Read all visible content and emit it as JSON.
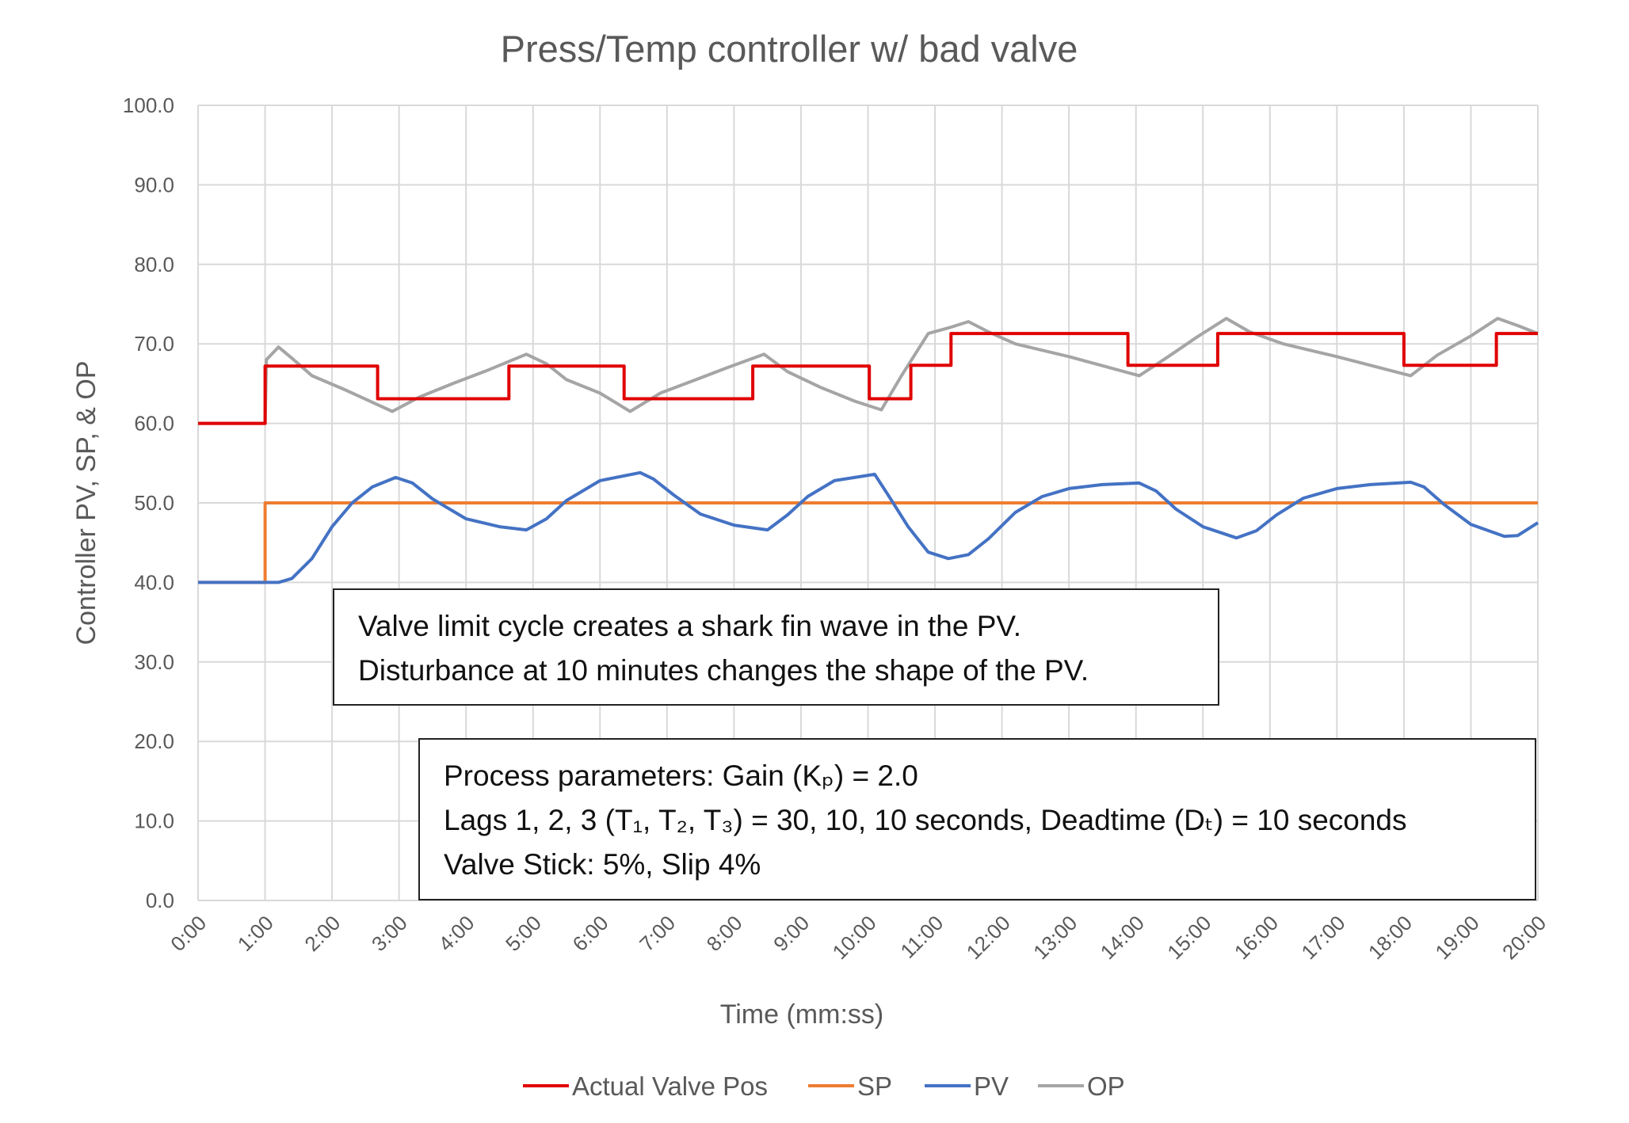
{
  "chart_data": {
    "type": "line",
    "title": "Press/Temp controller w/ bad valve",
    "xlabel": "Time (mm:ss)",
    "ylabel": "Controller PV, SP, & OP",
    "xlim": [
      0,
      20
    ],
    "ylim": [
      0,
      100
    ],
    "grid": true,
    "legend_position": "bottom",
    "x_unit": "minutes",
    "x_tick_labels": [
      "0:00",
      "1:00",
      "2:00",
      "3:00",
      "4:00",
      "5:00",
      "6:00",
      "7:00",
      "8:00",
      "9:00",
      "10:00",
      "11:00",
      "12:00",
      "13:00",
      "14:00",
      "15:00",
      "16:00",
      "17:00",
      "18:00",
      "19:00",
      "20:00"
    ],
    "y_tick_labels": [
      "0.0",
      "10.0",
      "20.0",
      "30.0",
      "40.0",
      "50.0",
      "60.0",
      "70.0",
      "80.0",
      "90.0",
      "100.0"
    ],
    "series": [
      {
        "name": "Actual Valve Pos",
        "color": "#e00000",
        "step": true,
        "points": [
          [
            0,
            60
          ],
          [
            1,
            60
          ],
          [
            1,
            67.2
          ],
          [
            2.68,
            67.2
          ],
          [
            2.68,
            63.1
          ],
          [
            4.64,
            63.1
          ],
          [
            4.64,
            67.2
          ],
          [
            6.36,
            67.2
          ],
          [
            6.36,
            63.1
          ],
          [
            8.28,
            63.1
          ],
          [
            8.28,
            67.2
          ],
          [
            10.02,
            67.2
          ],
          [
            10.02,
            63.1
          ],
          [
            10.64,
            63.1
          ],
          [
            10.64,
            67.3
          ],
          [
            11.24,
            67.3
          ],
          [
            11.24,
            71.3
          ],
          [
            13.88,
            71.3
          ],
          [
            13.88,
            67.3
          ],
          [
            15.22,
            67.3
          ],
          [
            15.22,
            71.3
          ],
          [
            18.0,
            71.3
          ],
          [
            18.0,
            67.3
          ],
          [
            19.38,
            67.3
          ],
          [
            19.38,
            71.3
          ],
          [
            20,
            71.3
          ]
        ]
      },
      {
        "name": "SP",
        "color": "#ed7d31",
        "points": [
          [
            0,
            40
          ],
          [
            1,
            40
          ],
          [
            1,
            50
          ],
          [
            20,
            50
          ]
        ]
      },
      {
        "name": "PV",
        "color": "#4472c4",
        "points": [
          [
            0,
            40
          ],
          [
            1.2,
            40
          ],
          [
            1.4,
            40.5
          ],
          [
            1.7,
            43
          ],
          [
            2.0,
            47
          ],
          [
            2.3,
            50
          ],
          [
            2.6,
            52
          ],
          [
            2.95,
            53.2
          ],
          [
            3.2,
            52.5
          ],
          [
            3.5,
            50.5
          ],
          [
            4.0,
            48
          ],
          [
            4.5,
            47
          ],
          [
            4.9,
            46.6
          ],
          [
            5.2,
            48
          ],
          [
            5.5,
            50.3
          ],
          [
            6.0,
            52.8
          ],
          [
            6.6,
            53.8
          ],
          [
            6.8,
            53
          ],
          [
            7.1,
            51
          ],
          [
            7.5,
            48.6
          ],
          [
            8.0,
            47.2
          ],
          [
            8.5,
            46.6
          ],
          [
            8.8,
            48.5
          ],
          [
            9.1,
            50.8
          ],
          [
            9.5,
            52.8
          ],
          [
            10.1,
            53.6
          ],
          [
            10.3,
            51
          ],
          [
            10.6,
            47
          ],
          [
            10.9,
            43.8
          ],
          [
            11.2,
            43
          ],
          [
            11.5,
            43.5
          ],
          [
            11.8,
            45.5
          ],
          [
            12.2,
            48.8
          ],
          [
            12.6,
            50.8
          ],
          [
            13.0,
            51.8
          ],
          [
            13.5,
            52.3
          ],
          [
            14.05,
            52.5
          ],
          [
            14.3,
            51.5
          ],
          [
            14.6,
            49.2
          ],
          [
            15.0,
            47
          ],
          [
            15.5,
            45.6
          ],
          [
            15.8,
            46.5
          ],
          [
            16.1,
            48.5
          ],
          [
            16.5,
            50.6
          ],
          [
            17.0,
            51.8
          ],
          [
            17.5,
            52.3
          ],
          [
            18.1,
            52.6
          ],
          [
            18.3,
            52
          ],
          [
            18.6,
            49.8
          ],
          [
            19.0,
            47.3
          ],
          [
            19.5,
            45.8
          ],
          [
            19.7,
            45.9
          ],
          [
            20,
            47.5
          ]
        ]
      },
      {
        "name": "OP",
        "color": "#a5a5a5",
        "points": [
          [
            0,
            60
          ],
          [
            1,
            60
          ],
          [
            1.02,
            68
          ],
          [
            1.2,
            69.6
          ],
          [
            1.4,
            68.2
          ],
          [
            1.7,
            66
          ],
          [
            2.2,
            64.2
          ],
          [
            2.9,
            61.5
          ],
          [
            3.3,
            63.3
          ],
          [
            3.8,
            65
          ],
          [
            4.3,
            66.6
          ],
          [
            4.9,
            68.7
          ],
          [
            5.2,
            67.5
          ],
          [
            5.5,
            65.5
          ],
          [
            6.0,
            63.8
          ],
          [
            6.45,
            61.5
          ],
          [
            6.9,
            63.8
          ],
          [
            7.4,
            65.4
          ],
          [
            7.9,
            67
          ],
          [
            8.45,
            68.7
          ],
          [
            8.8,
            66.5
          ],
          [
            9.3,
            64.5
          ],
          [
            9.8,
            62.8
          ],
          [
            10.2,
            61.7
          ],
          [
            10.5,
            66
          ],
          [
            10.9,
            71.3
          ],
          [
            11.2,
            72
          ],
          [
            11.5,
            72.8
          ],
          [
            11.8,
            71.5
          ],
          [
            12.2,
            70
          ],
          [
            13.0,
            68.4
          ],
          [
            14.05,
            66
          ],
          [
            14.5,
            68.5
          ],
          [
            14.9,
            70.8
          ],
          [
            15.35,
            73.2
          ],
          [
            15.7,
            71.5
          ],
          [
            16.2,
            70
          ],
          [
            17.0,
            68.4
          ],
          [
            18.1,
            66
          ],
          [
            18.5,
            68.6
          ],
          [
            19.0,
            71
          ],
          [
            19.4,
            73.2
          ],
          [
            19.7,
            72.3
          ],
          [
            20,
            71.3
          ]
        ]
      }
    ]
  },
  "annotations": {
    "box1": [
      "Valve limit cycle creates a shark fin wave in the PV.",
      "Disturbance at 10 minutes changes the shape of the PV."
    ],
    "box2": [
      "Process parameters:  Gain (Kₚ) = 2.0",
      "Lags 1, 2, 3 (T₁, T₂, T₃) = 30, 10, 10 seconds, Deadtime (Dₜ) = 10 seconds",
      "Valve Stick: 5%, Slip 4%"
    ]
  }
}
